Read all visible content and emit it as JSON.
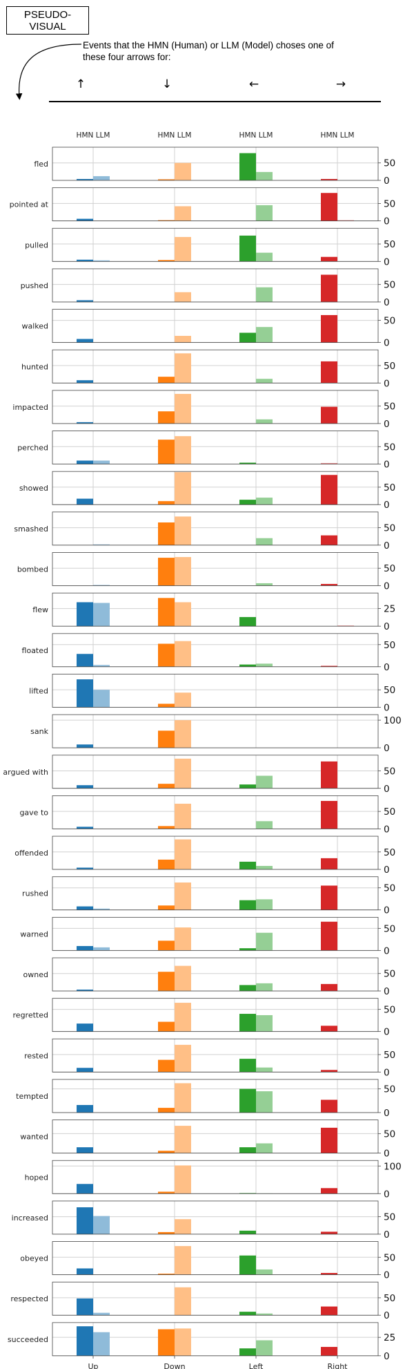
{
  "header": {
    "box_lines": [
      "PSEUDO-",
      "VISUAL"
    ],
    "description_lines": [
      "Events that the HMN (Human) or LLM (Model) choses one of",
      "these four arrows for:"
    ],
    "arrows": [
      "↑",
      "↓",
      "←",
      "→"
    ]
  },
  "chart_data": {
    "type": "bar",
    "categories": [
      "Up",
      "Down",
      "Left",
      "Right"
    ],
    "column_header": "HMN LLM",
    "series_labels": [
      "HMN",
      "LLM"
    ],
    "colors": {
      "Up": [
        "#1f77b4",
        "#8fbbd9"
      ],
      "Down": [
        "#ff7f0e",
        "#ffbf86"
      ],
      "Left": [
        "#2ca02c",
        "#95cf95"
      ],
      "Right": [
        "#d62728",
        "#ea9393"
      ]
    },
    "grid": true,
    "panels": [
      {
        "label": "fled",
        "ylim": [
          0,
          95
        ],
        "yticks": [
          0,
          50
        ],
        "hmn": [
          4,
          3,
          78,
          4
        ],
        "llm": [
          12,
          50,
          24,
          0
        ]
      },
      {
        "label": "pointed at",
        "ylim": [
          0,
          95
        ],
        "yticks": [
          0,
          50
        ],
        "hmn": [
          6,
          2,
          0,
          80
        ],
        "llm": [
          0,
          42,
          45,
          2
        ]
      },
      {
        "label": "pulled",
        "ylim": [
          0,
          95
        ],
        "yticks": [
          0,
          50
        ],
        "hmn": [
          5,
          4,
          74,
          13
        ],
        "llm": [
          3,
          70,
          25,
          0
        ]
      },
      {
        "label": "pushed",
        "ylim": [
          0,
          95
        ],
        "yticks": [
          0,
          50
        ],
        "hmn": [
          5,
          0,
          0,
          78
        ],
        "llm": [
          0,
          28,
          42,
          0
        ]
      },
      {
        "label": "walked",
        "ylim": [
          0,
          75
        ],
        "yticks": [
          0,
          50
        ],
        "hmn": [
          8,
          0,
          22,
          62
        ],
        "llm": [
          0,
          15,
          35,
          0
        ]
      },
      {
        "label": "hunted",
        "ylim": [
          0,
          95
        ],
        "yticks": [
          0,
          50
        ],
        "hmn": [
          8,
          18,
          0,
          62
        ],
        "llm": [
          0,
          85,
          12,
          0
        ]
      },
      {
        "label": "impacted",
        "ylim": [
          0,
          95
        ],
        "yticks": [
          0,
          50
        ],
        "hmn": [
          4,
          35,
          0,
          48
        ],
        "llm": [
          0,
          85,
          12,
          0
        ]
      },
      {
        "label": "perched",
        "ylim": [
          0,
          95
        ],
        "yticks": [
          0,
          50
        ],
        "hmn": [
          10,
          70,
          4,
          2
        ],
        "llm": [
          10,
          80,
          0,
          0
        ]
      },
      {
        "label": "showed",
        "ylim": [
          0,
          95
        ],
        "yticks": [
          0,
          50
        ],
        "hmn": [
          17,
          10,
          14,
          85
        ],
        "llm": [
          0,
          93,
          20,
          0
        ]
      },
      {
        "label": "smashed",
        "ylim": [
          0,
          95
        ],
        "yticks": [
          0,
          50
        ],
        "hmn": [
          0,
          65,
          0,
          28
        ],
        "llm": [
          2,
          82,
          20,
          0
        ]
      },
      {
        "label": "bombed",
        "ylim": [
          0,
          95
        ],
        "yticks": [
          0,
          50
        ],
        "hmn": [
          0,
          80,
          0,
          5
        ],
        "llm": [
          2,
          82,
          7,
          0
        ]
      },
      {
        "label": "flew",
        "ylim": [
          0,
          47
        ],
        "yticks": [
          0,
          25
        ],
        "hmn": [
          34,
          40,
          13,
          0
        ],
        "llm": [
          33,
          34,
          0,
          1
        ]
      },
      {
        "label": "floated",
        "ylim": [
          0,
          75
        ],
        "yticks": [
          0,
          50
        ],
        "hmn": [
          29,
          52,
          5,
          2
        ],
        "llm": [
          4,
          58,
          7,
          0
        ]
      },
      {
        "label": "lifted",
        "ylim": [
          0,
          95
        ],
        "yticks": [
          0,
          50
        ],
        "hmn": [
          80,
          10,
          0,
          0
        ],
        "llm": [
          50,
          42,
          0,
          0
        ]
      },
      {
        "label": "sank",
        "ylim": [
          0,
          120
        ],
        "yticks": [
          0,
          100
        ],
        "hmn": [
          12,
          62,
          0,
          0
        ],
        "llm": [
          0,
          100,
          0,
          0
        ]
      },
      {
        "label": "argued with",
        "ylim": [
          0,
          95
        ],
        "yticks": [
          0,
          50
        ],
        "hmn": [
          9,
          13,
          11,
          77
        ],
        "llm": [
          0,
          85,
          36,
          0
        ]
      },
      {
        "label": "gave to",
        "ylim": [
          0,
          95
        ],
        "yticks": [
          0,
          50
        ],
        "hmn": [
          6,
          8,
          0,
          80
        ],
        "llm": [
          0,
          72,
          22,
          0
        ]
      },
      {
        "label": "offended",
        "ylim": [
          0,
          95
        ],
        "yticks": [
          0,
          50
        ],
        "hmn": [
          5,
          28,
          22,
          32
        ],
        "llm": [
          0,
          86,
          10,
          0
        ]
      },
      {
        "label": "rushed",
        "ylim": [
          0,
          75
        ],
        "yticks": [
          0,
          50
        ],
        "hmn": [
          8,
          10,
          22,
          55
        ],
        "llm": [
          3,
          62,
          24,
          0
        ]
      },
      {
        "label": "warned",
        "ylim": [
          0,
          75
        ],
        "yticks": [
          0,
          50
        ],
        "hmn": [
          10,
          22,
          5,
          65
        ],
        "llm": [
          7,
          52,
          40,
          0
        ]
      },
      {
        "label": "owned",
        "ylim": [
          0,
          95
        ],
        "yticks": [
          0,
          50
        ],
        "hmn": [
          4,
          55,
          17,
          20
        ],
        "llm": [
          0,
          72,
          22,
          0
        ]
      },
      {
        "label": "regretted",
        "ylim": [
          0,
          75
        ],
        "yticks": [
          0,
          50
        ],
        "hmn": [
          18,
          22,
          40,
          13
        ],
        "llm": [
          0,
          65,
          37,
          0
        ]
      },
      {
        "label": "rested",
        "ylim": [
          0,
          95
        ],
        "yticks": [
          0,
          50
        ],
        "hmn": [
          12,
          35,
          38,
          6
        ],
        "llm": [
          0,
          78,
          13,
          0
        ]
      },
      {
        "label": "tempted",
        "ylim": [
          0,
          70
        ],
        "yticks": [
          0,
          50
        ],
        "hmn": [
          16,
          10,
          50,
          27
        ],
        "llm": [
          0,
          62,
          45,
          0
        ]
      },
      {
        "label": "wanted",
        "ylim": [
          0,
          85
        ],
        "yticks": [
          0,
          50
        ],
        "hmn": [
          15,
          6,
          15,
          65
        ],
        "llm": [
          0,
          70,
          25,
          0
        ]
      },
      {
        "label": "hoped",
        "ylim": [
          0,
          120
        ],
        "yticks": [
          0,
          100
        ],
        "hmn": [
          35,
          7,
          2,
          20
        ],
        "llm": [
          0,
          102,
          1,
          0
        ]
      },
      {
        "label": "increased",
        "ylim": [
          0,
          95
        ],
        "yticks": [
          0,
          50
        ],
        "hmn": [
          77,
          6,
          10,
          7
        ],
        "llm": [
          52,
          43,
          0,
          0
        ]
      },
      {
        "label": "obeyed",
        "ylim": [
          0,
          95
        ],
        "yticks": [
          0,
          50
        ],
        "hmn": [
          18,
          3,
          55,
          5
        ],
        "llm": [
          0,
          82,
          15,
          0
        ]
      },
      {
        "label": "respected",
        "ylim": [
          0,
          95
        ],
        "yticks": [
          0,
          50
        ],
        "hmn": [
          48,
          0,
          10,
          25
        ],
        "llm": [
          7,
          80,
          5,
          0
        ]
      },
      {
        "label": "succeeded",
        "ylim": [
          0,
          45
        ],
        "yticks": [
          0,
          25
        ],
        "hmn": [
          40,
          36,
          10,
          12
        ],
        "llm": [
          32,
          37,
          21,
          0
        ]
      }
    ]
  }
}
